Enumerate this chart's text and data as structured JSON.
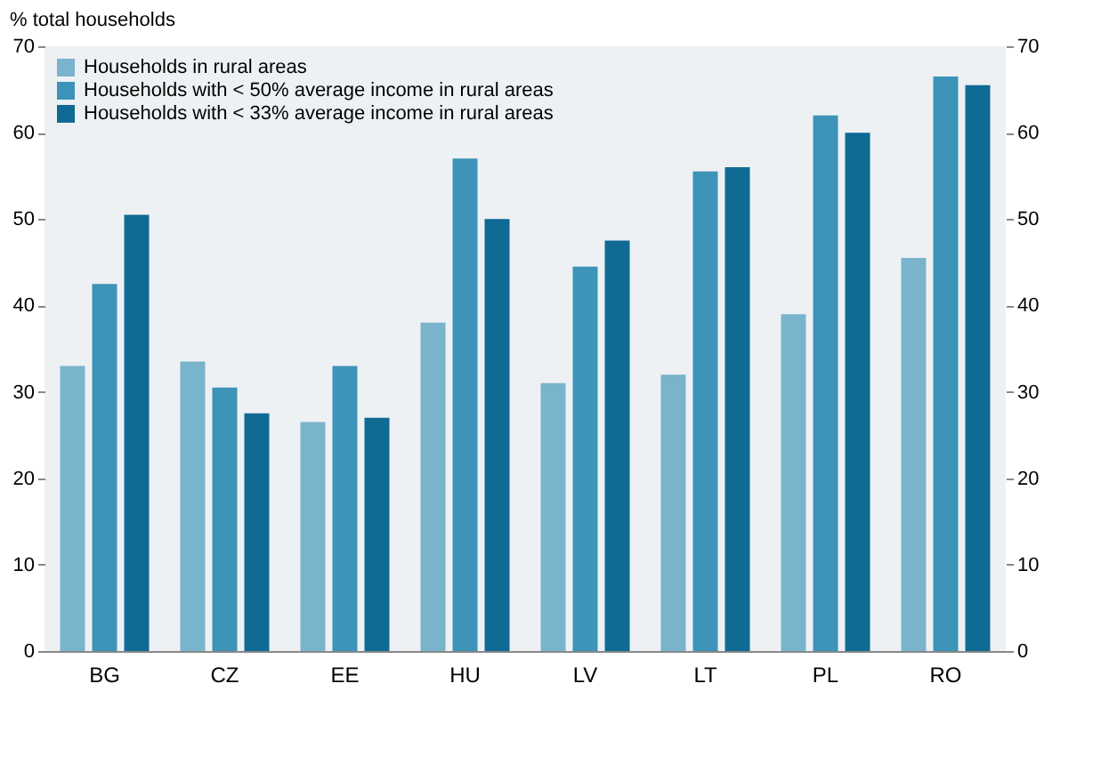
{
  "chart_data": {
    "type": "bar",
    "ylabel": "% total households",
    "categories": [
      "BG",
      "CZ",
      "EE",
      "HU",
      "LV",
      "LT",
      "PL",
      "RO"
    ],
    "series": [
      {
        "name": "Households in rural areas",
        "color": "#7ab3cc",
        "values": [
          33,
          33.5,
          26.5,
          38,
          31,
          32,
          39,
          45.5
        ]
      },
      {
        "name": "Households with < 50% average income in rural areas",
        "color": "#3d93b8",
        "values": [
          42.5,
          30.5,
          33,
          57,
          44.5,
          55.5,
          62,
          66.5
        ]
      },
      {
        "name": "Households with < 33% average income in rural areas",
        "color": "#0f6a94",
        "values": [
          50.5,
          27.5,
          27,
          50,
          47.5,
          56,
          60,
          65.5
        ]
      }
    ],
    "ylim": [
      0,
      70
    ],
    "yticks": [
      0,
      10,
      20,
      30,
      40,
      50,
      60,
      70
    ],
    "y2lim": [
      0,
      70
    ],
    "y2ticks": [
      0,
      10,
      20,
      30,
      40,
      50,
      60,
      70
    ],
    "legend": "top left",
    "grid": false
  }
}
